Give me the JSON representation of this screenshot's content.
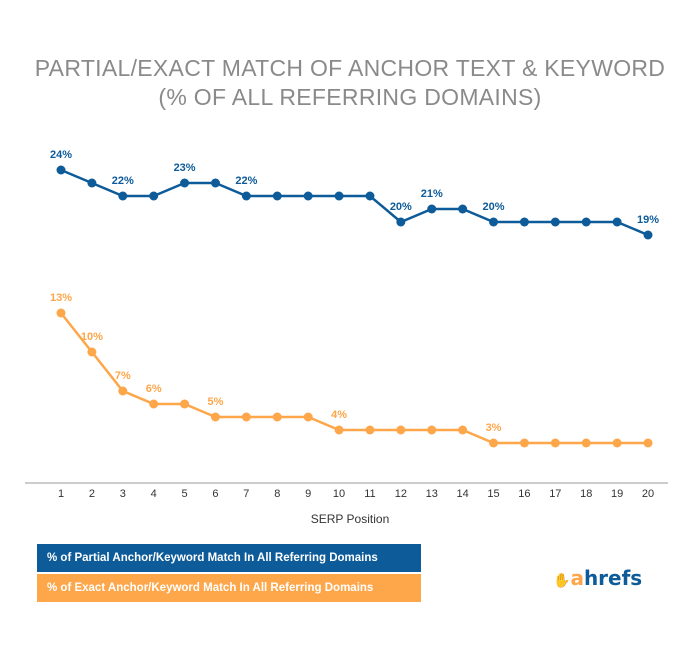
{
  "title_line1": "PARTIAL/EXACT MATCH OF ANCHOR TEXT & KEYWORD",
  "title_line2": "(% OF ALL REFERRING DOMAINS)",
  "logo": {
    "a": "a",
    "rest": "hrefs",
    "icon": "ahrefs-hand-icon"
  },
  "colors": {
    "partial": "#0d5b99",
    "exact": "#fda64a",
    "axis": "#999999"
  },
  "chart_data": {
    "type": "line",
    "xlabel": "SERP Position",
    "ylabel": "",
    "x": [
      1,
      2,
      3,
      4,
      5,
      6,
      7,
      8,
      9,
      10,
      11,
      12,
      13,
      14,
      15,
      16,
      17,
      18,
      19,
      20
    ],
    "ylim": [
      0,
      30
    ],
    "grid": false,
    "legend": "bottom-left",
    "series": [
      {
        "name": "% of Partial Anchor/Keyword Match In All Referring Domains",
        "color": "#0d5b99",
        "values": [
          24,
          23,
          22,
          22,
          23,
          23,
          22,
          22,
          22,
          22,
          22,
          20,
          21,
          21,
          20,
          20,
          20,
          20,
          20,
          19
        ],
        "labeled_x": [
          1,
          3,
          5,
          7,
          12,
          13,
          15,
          20
        ]
      },
      {
        "name": "% of Exact Anchor/Keyword Match In All Referring Domains",
        "color": "#fda64a",
        "values": [
          13,
          10,
          7,
          6,
          6,
          5,
          5,
          5,
          5,
          4,
          4,
          4,
          4,
          4,
          3,
          3,
          3,
          3,
          3,
          3
        ],
        "labeled_x": [
          1,
          2,
          3,
          4,
          6,
          10,
          15
        ]
      }
    ]
  }
}
